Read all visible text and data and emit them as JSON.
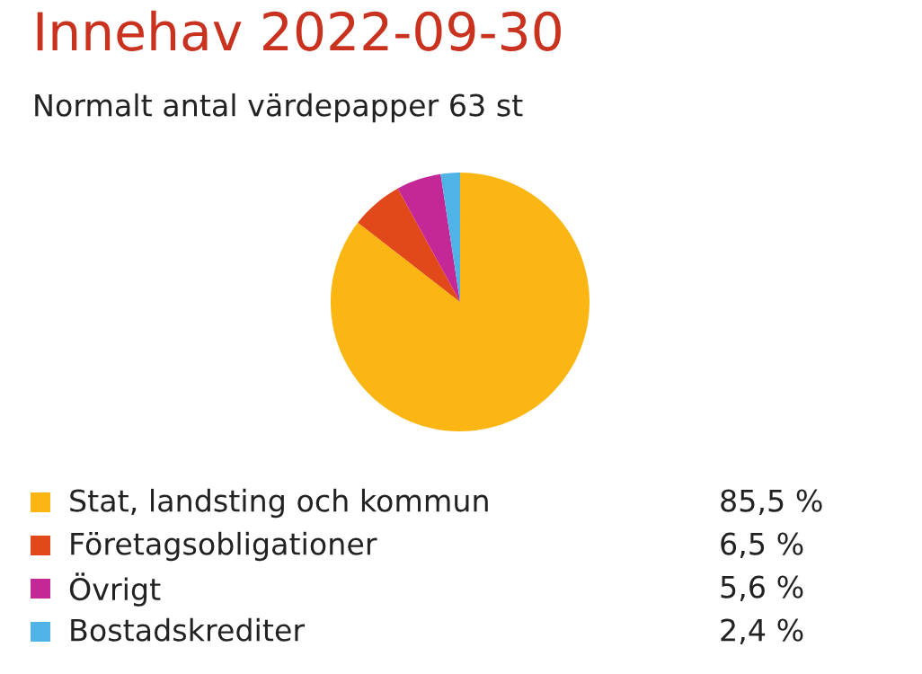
{
  "chart_data": {
    "type": "pie",
    "title": "Innehav 2022-09-30",
    "subtitle": "Normalt antal värdepapper 63 st",
    "categories": [
      "Stat, landsting och kommun",
      "Företagsobligationer",
      "Övrigt",
      "Bostadskrediter"
    ],
    "values": [
      85.5,
      6.5,
      5.6,
      2.4
    ],
    "colors": [
      "#fbb614",
      "#e2491a",
      "#c42796",
      "#4fb3e6"
    ],
    "value_labels": [
      "85,5 %",
      "6,5 %",
      "5,6 %",
      "2,4 %"
    ],
    "legend": "bottom"
  }
}
